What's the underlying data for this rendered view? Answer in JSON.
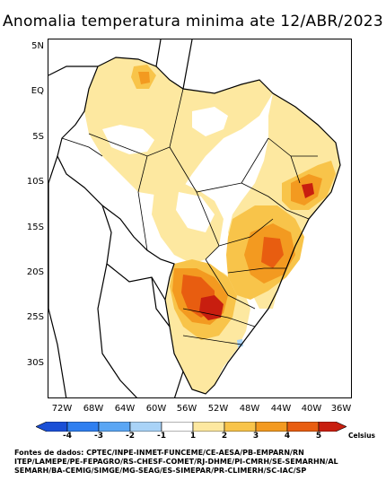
{
  "map": {
    "title": "Anomalia temperatura minima ate 12/ABR/2023",
    "lat_labels": [
      "5N",
      "EQ",
      "5S",
      "10S",
      "15S",
      "20S",
      "25S",
      "30S"
    ],
    "lon_labels": [
      "72W",
      "68W",
      "64W",
      "60W",
      "56W",
      "52W",
      "48W",
      "44W",
      "40W",
      "36W"
    ],
    "lat_range": [
      -34,
      6
    ],
    "lon_range": [
      -74,
      -35
    ],
    "colorbar": {
      "labels": [
        "-4",
        "-3",
        "-2",
        "-1",
        "1",
        "2",
        "3",
        "4",
        "5"
      ],
      "colors": [
        "#1a4fd6",
        "#2f7ff0",
        "#5aa6f4",
        "#a9d3f7",
        "#ffffff",
        "#fde8a0",
        "#f8c44a",
        "#f39a20",
        "#e85d10",
        "#c81e0f"
      ],
      "unit": "Celsius"
    },
    "legend_colors": {
      "light": "#fde8a0",
      "medium": "#f8c44a",
      "orange": "#f39a20",
      "dark_orange": "#e85d10",
      "red": "#c81e0f",
      "light_blue": "#a9d3f7"
    }
  },
  "credits": {
    "line1": "Fontes de dados: CPTEC/INPE-INMET-FUNCEME/CE-AESA/PB-EMPARN/RN",
    "line2": "ITEP/LAMEPE/PE-FEPAGRO/RS-CHESF-COMET/RJ-DHME/PI-CMRH/SE-SEMARHN/AL",
    "line3": "SEMARH/BA-CEMIG/SIMGE/MG-SEAG/ES-SIMEPAR/PR-CLIMERH/SC-IAC/SP"
  }
}
